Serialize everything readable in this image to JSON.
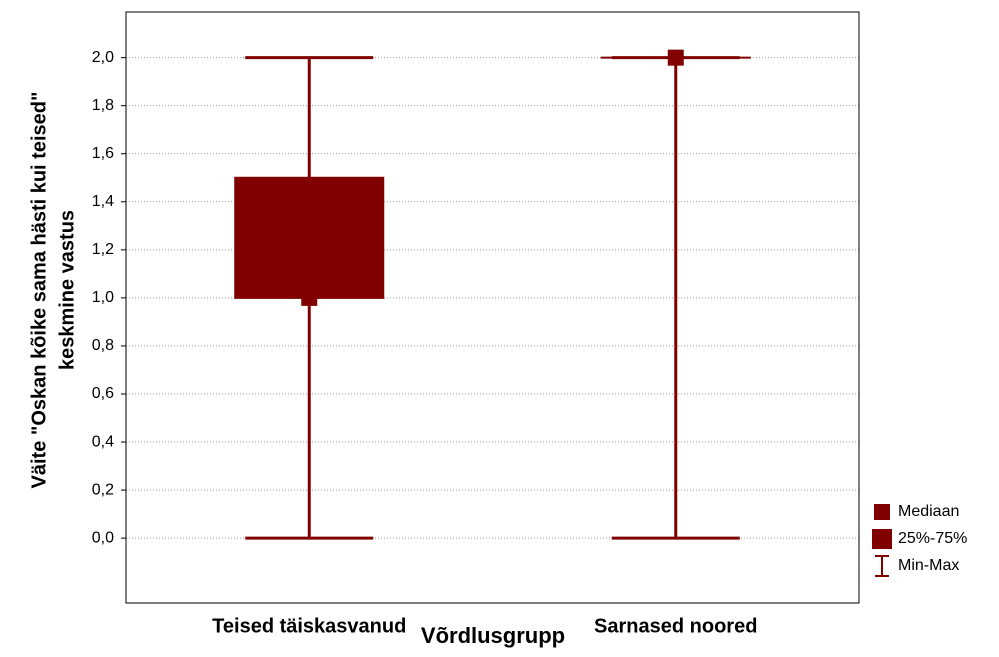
{
  "chart_data": {
    "type": "box",
    "ylabel": [
      "Väite \"Oskan kõike sama hästi kui teised\"",
      "keskmine vastus"
    ],
    "xlabel": "Võrdlusgrupp",
    "categories": [
      "Teised täiskasvanud",
      "Sarnased noored"
    ],
    "min": [
      0,
      0
    ],
    "q1": [
      1.0,
      2.0
    ],
    "median": [
      1.0,
      2.0
    ],
    "q3": [
      1.5,
      2.0
    ],
    "max": [
      2.0,
      2.0
    ],
    "color": "#800000",
    "ylim": [
      -0.27,
      2.19
    ],
    "yticks": [
      {
        "value": 0,
        "label": "0,0"
      },
      {
        "value": 0.2,
        "label": "0,2"
      },
      {
        "value": 0.4,
        "label": "0,4"
      },
      {
        "value": 0.6,
        "label": "0,6"
      },
      {
        "value": 0.8,
        "label": "0,8"
      },
      {
        "value": 1.0,
        "label": "1,0"
      },
      {
        "value": 1.2,
        "label": "1,2"
      },
      {
        "value": 1.4,
        "label": "1,4"
      },
      {
        "value": 1.6,
        "label": "1,6"
      },
      {
        "value": 1.8,
        "label": "1,8"
      },
      {
        "value": 2.0,
        "label": "2,0"
      }
    ],
    "grid": true,
    "legend": [
      "Mediaan",
      "25%-75%",
      "Min-Max"
    ]
  }
}
